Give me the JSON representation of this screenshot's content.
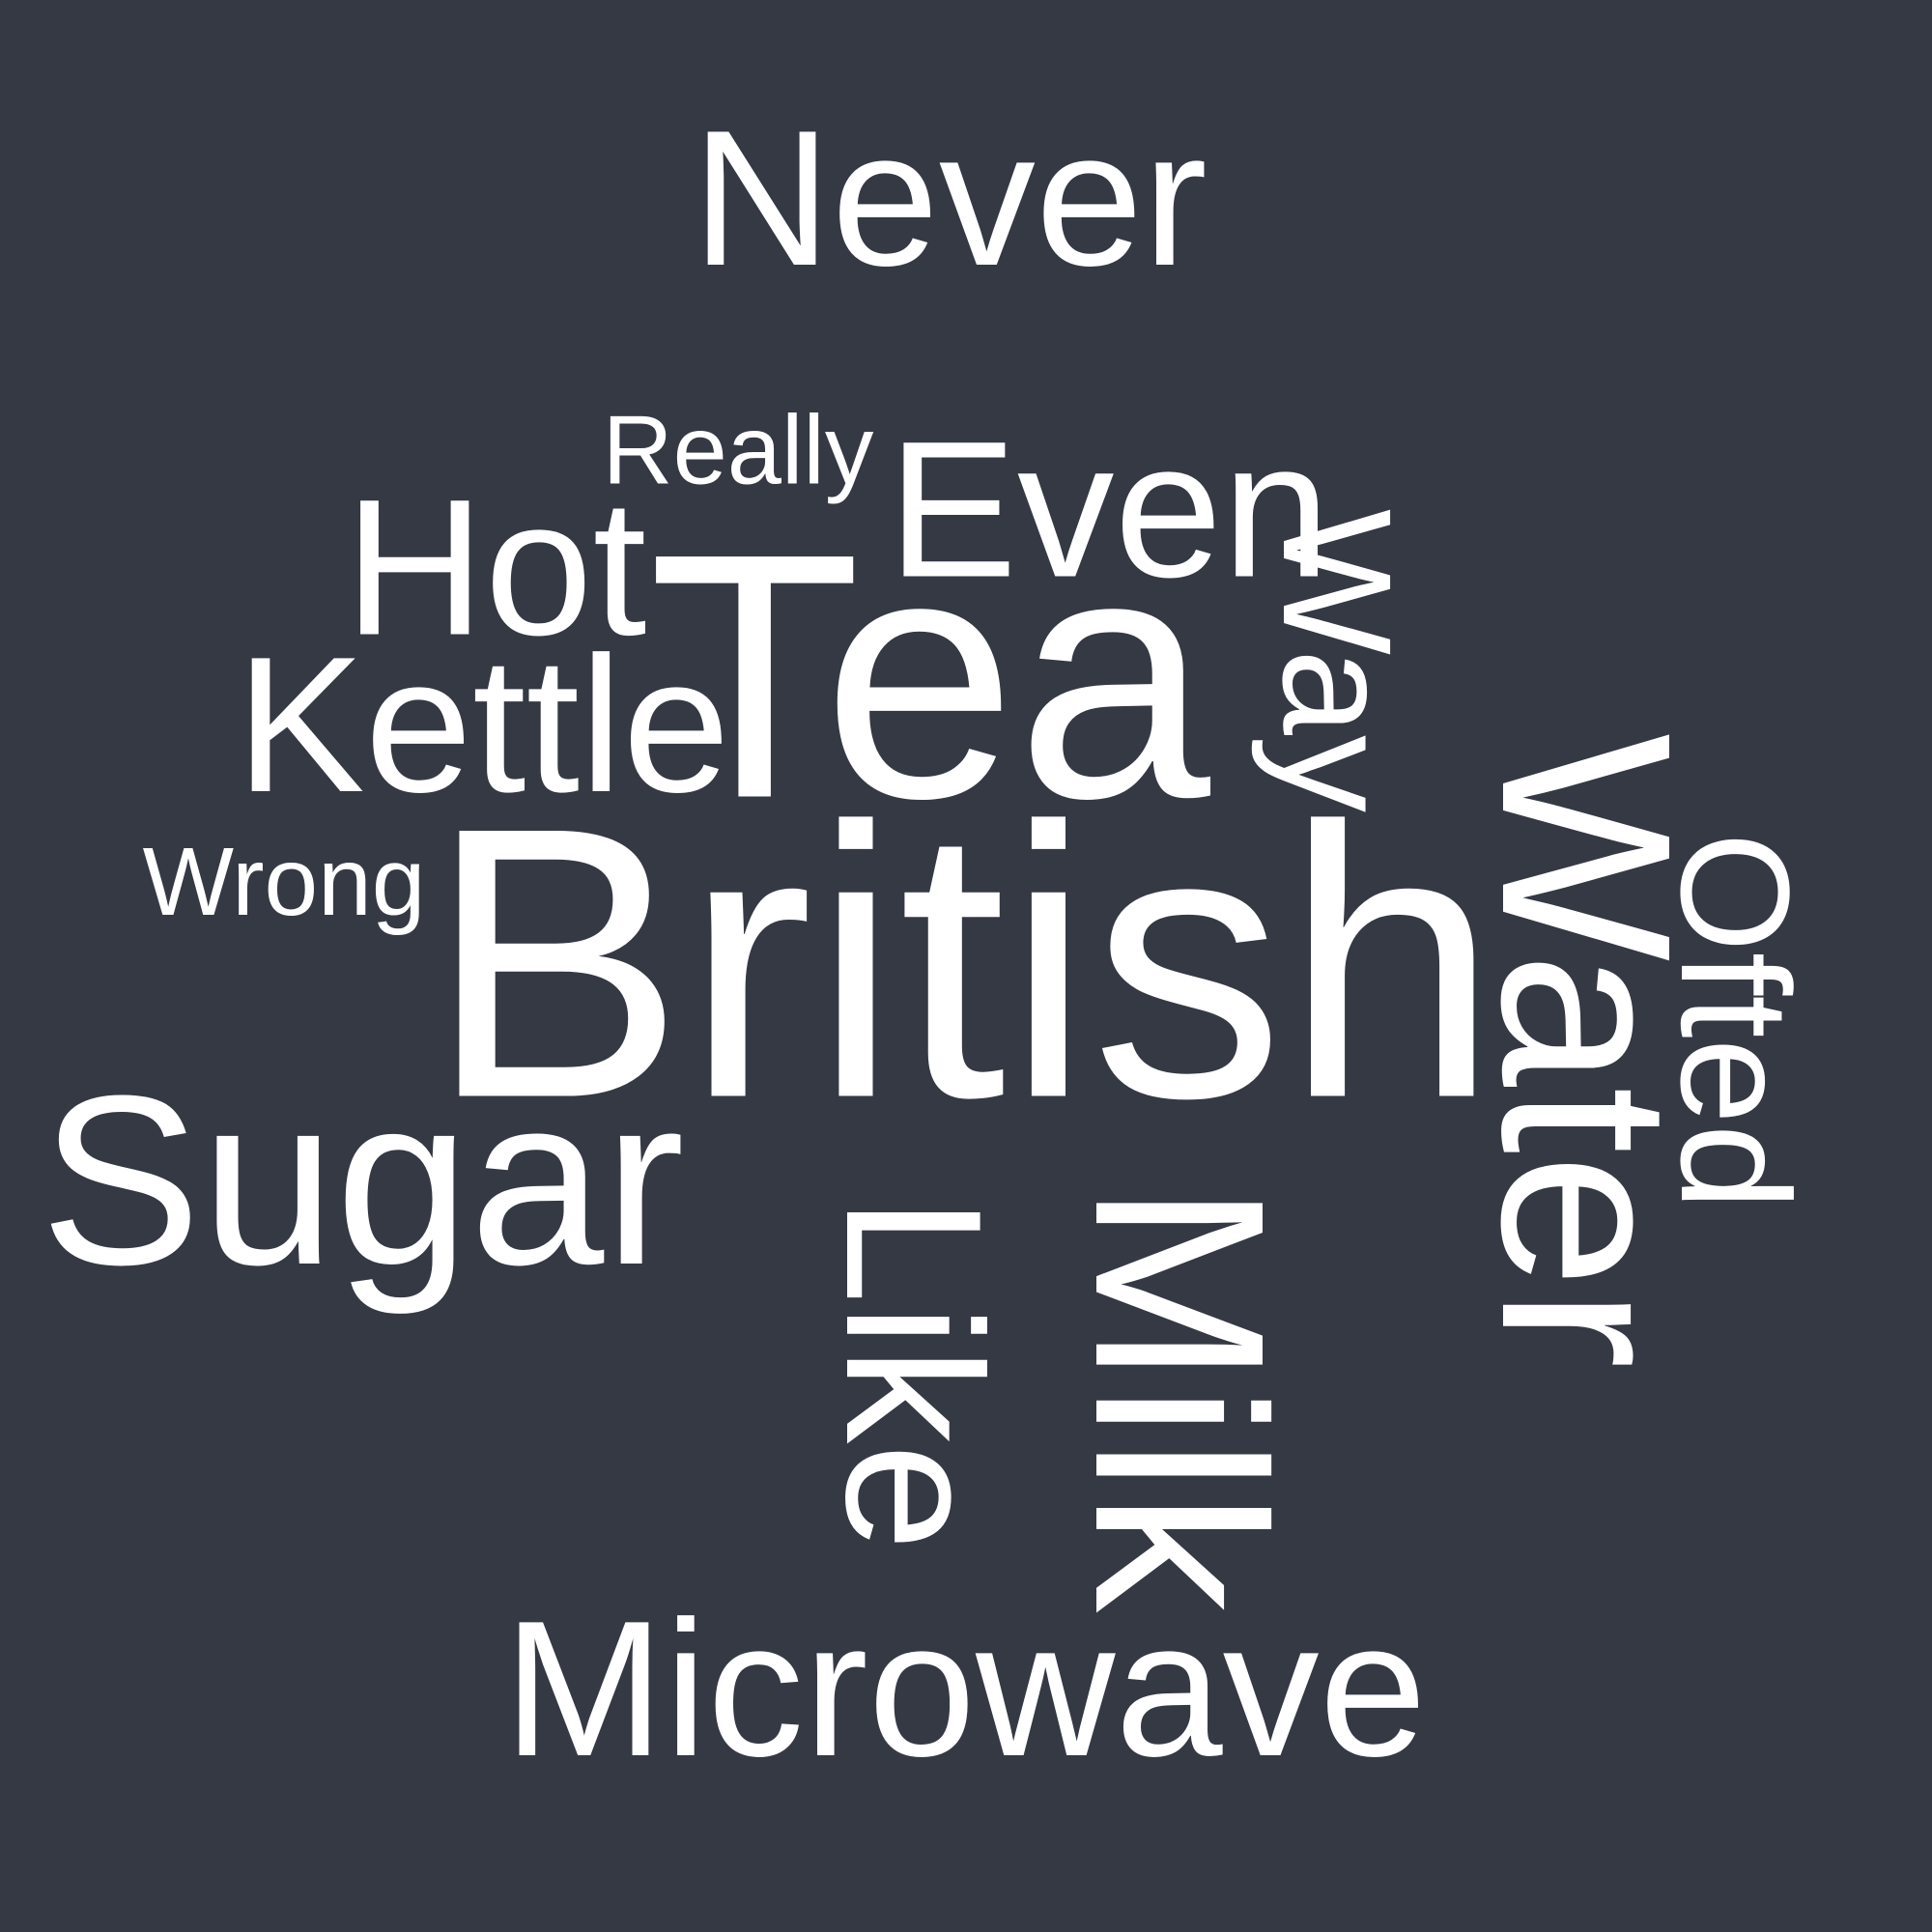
{
  "words": {
    "never": "Never",
    "really": "Really",
    "even": "Even",
    "hot": "Hot",
    "tea": "Tea",
    "kettle": "Kettle",
    "wrong": "Wrong",
    "british": "British",
    "sugar": "Sugar",
    "microwave": "Microwave",
    "way": "Way",
    "water": "Water",
    "ofted": "Ofted",
    "like": "Like",
    "milk": "Milk"
  },
  "colors": {
    "background": "#353944",
    "text": "#ffffff"
  }
}
